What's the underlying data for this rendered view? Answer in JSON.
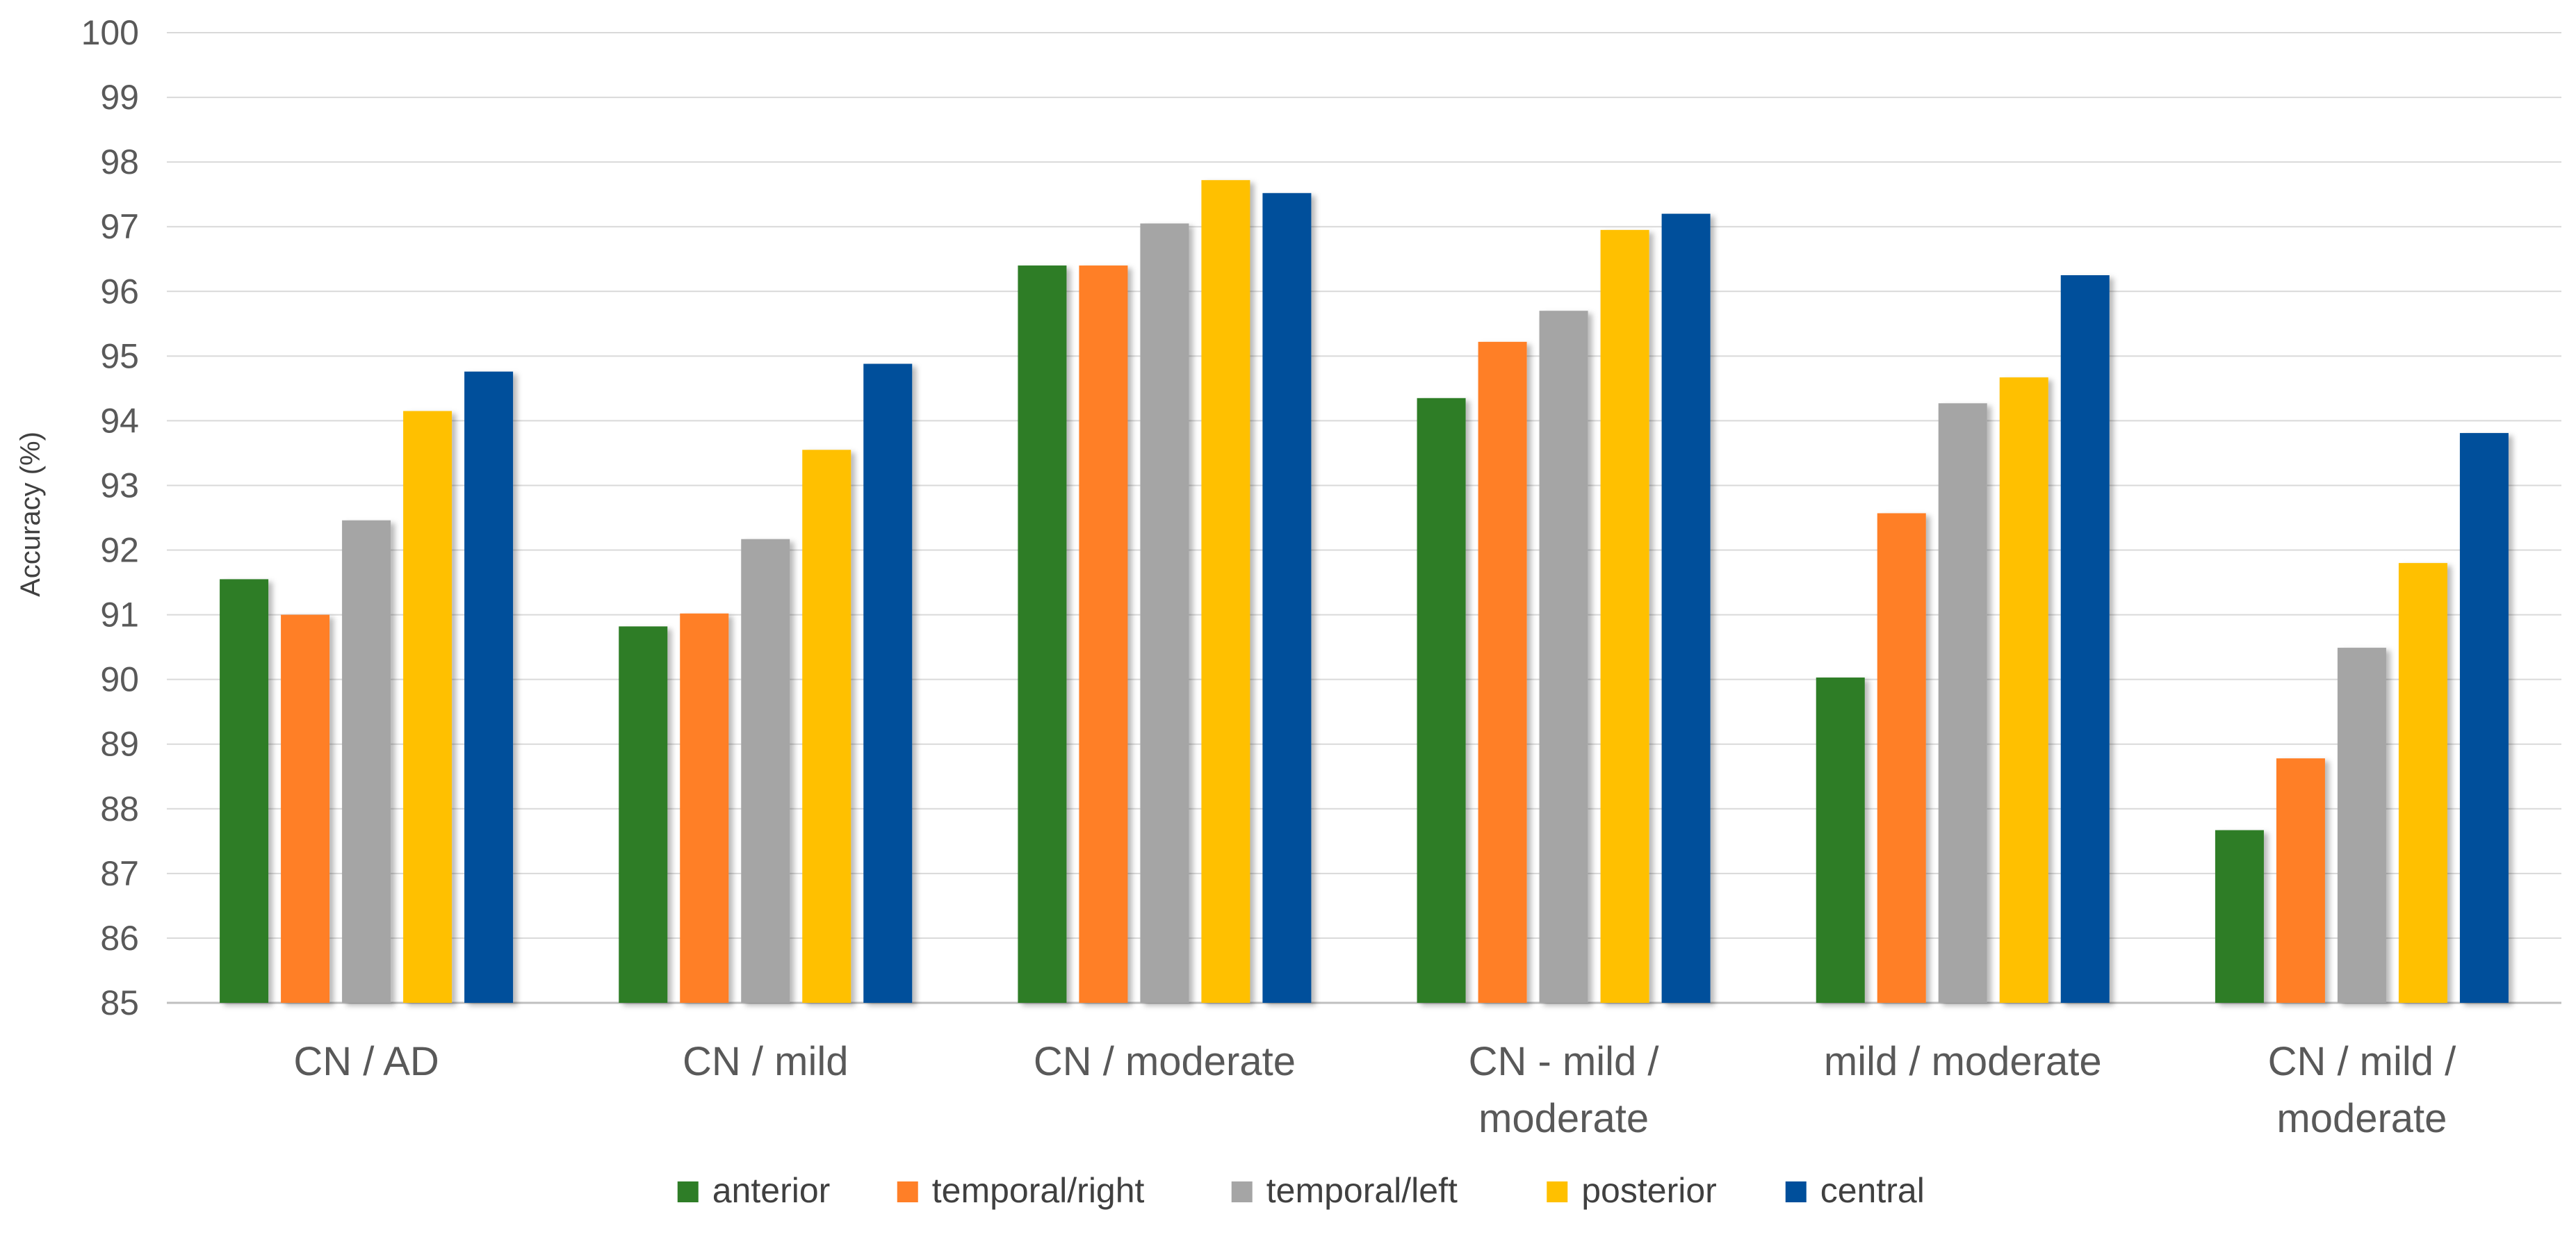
{
  "chart_data": {
    "type": "bar",
    "title": "",
    "xlabel": "",
    "ylabel": "Accuracy (%)",
    "ylim": [
      85,
      100
    ],
    "ytick_step": 1,
    "grid": true,
    "legend_position": "bottom",
    "categories": [
      [
        "CN / AD"
      ],
      [
        "CN / mild"
      ],
      [
        "CN / moderate"
      ],
      [
        "CN - mild /",
        "moderate"
      ],
      [
        "mild / moderate"
      ],
      [
        "CN / mild /",
        "moderate"
      ]
    ],
    "series": [
      {
        "name": "anterior",
        "color": "#2E7D27",
        "values": [
          91.55,
          90.82,
          96.4,
          94.35,
          90.03,
          87.67
        ]
      },
      {
        "name": "temporal/right",
        "color": "#FF7F27",
        "values": [
          91.0,
          91.02,
          96.4,
          95.22,
          92.57,
          88.78
        ]
      },
      {
        "name": "temporal/left",
        "color": "#A5A5A5",
        "values": [
          92.46,
          92.17,
          97.05,
          95.7,
          94.27,
          90.49
        ]
      },
      {
        "name": "posterior",
        "color": "#FFC000",
        "values": [
          94.15,
          93.55,
          97.72,
          96.95,
          94.67,
          91.8
        ]
      },
      {
        "name": "central",
        "color": "#004F9B",
        "values": [
          94.76,
          94.88,
          97.52,
          97.2,
          96.25,
          93.81
        ]
      }
    ]
  }
}
